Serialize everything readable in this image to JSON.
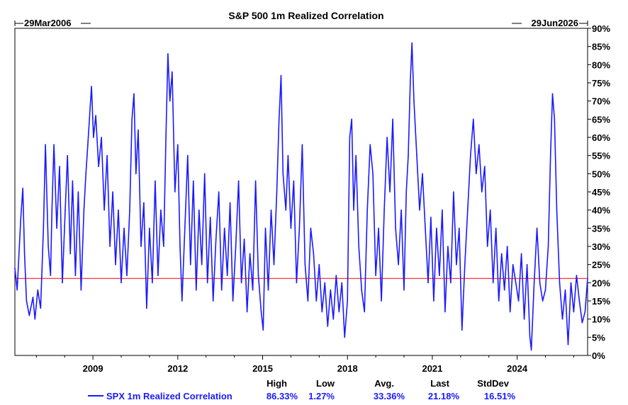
{
  "chart_data": {
    "type": "line",
    "title": "S&P 500 1m Realized Correlation",
    "date_start": "29Mar2006",
    "date_end": "29Jun2026",
    "x_range": [
      2006.24,
      2026.49
    ],
    "ylim": [
      0,
      90
    ],
    "y_ticks": [
      0,
      5,
      10,
      15,
      20,
      25,
      30,
      35,
      40,
      45,
      50,
      55,
      60,
      65,
      70,
      75,
      80,
      85,
      90
    ],
    "y_tick_labels": [
      "0%",
      "5%",
      "10%",
      "15%",
      "20%",
      "25%",
      "30%",
      "35%",
      "40%",
      "45%",
      "50%",
      "55%",
      "60%",
      "65%",
      "70%",
      "75%",
      "80%",
      "85%",
      "90%"
    ],
    "x_ticks": [
      2009,
      2012,
      2015,
      2018,
      2021,
      2024
    ],
    "x_tick_labels": [
      "2009",
      "2012",
      "2015",
      "2018",
      "2021",
      "2024"
    ],
    "reference_line": {
      "value": 21.18,
      "color": "#ff0000"
    },
    "line_color": "#1a1aff",
    "series": [
      {
        "name": "SPX 1m Realized Correlation",
        "points": [
          [
            2006.24,
            24
          ],
          [
            2006.32,
            18
          ],
          [
            2006.45,
            38
          ],
          [
            2006.52,
            46
          ],
          [
            2006.58,
            28
          ],
          [
            2006.65,
            15
          ],
          [
            2006.75,
            11
          ],
          [
            2006.88,
            16
          ],
          [
            2006.95,
            10
          ],
          [
            2007.05,
            18
          ],
          [
            2007.15,
            13
          ],
          [
            2007.25,
            35
          ],
          [
            2007.32,
            58
          ],
          [
            2007.42,
            30
          ],
          [
            2007.5,
            22
          ],
          [
            2007.55,
            40
          ],
          [
            2007.62,
            58
          ],
          [
            2007.72,
            35
          ],
          [
            2007.82,
            52
          ],
          [
            2007.92,
            20
          ],
          [
            2008.02,
            40
          ],
          [
            2008.1,
            55
          ],
          [
            2008.2,
            28
          ],
          [
            2008.28,
            48
          ],
          [
            2008.38,
            22
          ],
          [
            2008.48,
            45
          ],
          [
            2008.58,
            18
          ],
          [
            2008.68,
            40
          ],
          [
            2008.75,
            50
          ],
          [
            2008.82,
            58
          ],
          [
            2008.9,
            68
          ],
          [
            2008.95,
            74
          ],
          [
            2009.02,
            60
          ],
          [
            2009.1,
            66
          ],
          [
            2009.2,
            52
          ],
          [
            2009.3,
            60
          ],
          [
            2009.4,
            40
          ],
          [
            2009.5,
            55
          ],
          [
            2009.6,
            30
          ],
          [
            2009.7,
            45
          ],
          [
            2009.8,
            25
          ],
          [
            2009.9,
            40
          ],
          [
            2010.0,
            20
          ],
          [
            2010.1,
            35
          ],
          [
            2010.2,
            22
          ],
          [
            2010.3,
            40
          ],
          [
            2010.38,
            65
          ],
          [
            2010.45,
            72
          ],
          [
            2010.52,
            50
          ],
          [
            2010.6,
            62
          ],
          [
            2010.7,
            30
          ],
          [
            2010.8,
            42
          ],
          [
            2010.9,
            13
          ],
          [
            2011.0,
            35
          ],
          [
            2011.1,
            20
          ],
          [
            2011.2,
            48
          ],
          [
            2011.3,
            22
          ],
          [
            2011.4,
            40
          ],
          [
            2011.5,
            30
          ],
          [
            2011.58,
            60
          ],
          [
            2011.65,
            83
          ],
          [
            2011.72,
            70
          ],
          [
            2011.8,
            78
          ],
          [
            2011.9,
            45
          ],
          [
            2012.0,
            58
          ],
          [
            2012.08,
            30
          ],
          [
            2012.15,
            15
          ],
          [
            2012.25,
            35
          ],
          [
            2012.35,
            55
          ],
          [
            2012.45,
            25
          ],
          [
            2012.55,
            48
          ],
          [
            2012.65,
            18
          ],
          [
            2012.75,
            40
          ],
          [
            2012.85,
            25
          ],
          [
            2012.95,
            50
          ],
          [
            2013.05,
            20
          ],
          [
            2013.15,
            38
          ],
          [
            2013.25,
            15
          ],
          [
            2013.35,
            32
          ],
          [
            2013.45,
            45
          ],
          [
            2013.55,
            18
          ],
          [
            2013.65,
            35
          ],
          [
            2013.75,
            22
          ],
          [
            2013.85,
            42
          ],
          [
            2013.95,
            15
          ],
          [
            2014.05,
            30
          ],
          [
            2014.15,
            48
          ],
          [
            2014.25,
            20
          ],
          [
            2014.35,
            32
          ],
          [
            2014.45,
            12
          ],
          [
            2014.55,
            28
          ],
          [
            2014.65,
            18
          ],
          [
            2014.75,
            48
          ],
          [
            2014.85,
            22
          ],
          [
            2014.95,
            12
          ],
          [
            2015.02,
            7
          ],
          [
            2015.1,
            35
          ],
          [
            2015.2,
            18
          ],
          [
            2015.3,
            40
          ],
          [
            2015.4,
            25
          ],
          [
            2015.5,
            45
          ],
          [
            2015.58,
            65
          ],
          [
            2015.65,
            77
          ],
          [
            2015.72,
            50
          ],
          [
            2015.82,
            40
          ],
          [
            2015.9,
            55
          ],
          [
            2016.0,
            35
          ],
          [
            2016.1,
            48
          ],
          [
            2016.2,
            20
          ],
          [
            2016.3,
            35
          ],
          [
            2016.4,
            58
          ],
          [
            2016.5,
            25
          ],
          [
            2016.6,
            15
          ],
          [
            2016.7,
            35
          ],
          [
            2016.8,
            28
          ],
          [
            2016.9,
            15
          ],
          [
            2017.0,
            25
          ],
          [
            2017.1,
            12
          ],
          [
            2017.2,
            20
          ],
          [
            2017.3,
            8
          ],
          [
            2017.4,
            18
          ],
          [
            2017.5,
            10
          ],
          [
            2017.6,
            22
          ],
          [
            2017.7,
            12
          ],
          [
            2017.8,
            20
          ],
          [
            2017.9,
            5
          ],
          [
            2018.0,
            15
          ],
          [
            2018.08,
            60
          ],
          [
            2018.15,
            65
          ],
          [
            2018.22,
            40
          ],
          [
            2018.3,
            55
          ],
          [
            2018.4,
            30
          ],
          [
            2018.5,
            18
          ],
          [
            2018.6,
            12
          ],
          [
            2018.7,
            40
          ],
          [
            2018.8,
            58
          ],
          [
            2018.9,
            50
          ],
          [
            2019.0,
            22
          ],
          [
            2019.1,
            35
          ],
          [
            2019.2,
            15
          ],
          [
            2019.3,
            40
          ],
          [
            2019.4,
            60
          ],
          [
            2019.5,
            45
          ],
          [
            2019.6,
            65
          ],
          [
            2019.7,
            35
          ],
          [
            2019.8,
            25
          ],
          [
            2019.9,
            40
          ],
          [
            2020.0,
            18
          ],
          [
            2020.08,
            45
          ],
          [
            2020.15,
            55
          ],
          [
            2020.22,
            75
          ],
          [
            2020.28,
            86
          ],
          [
            2020.35,
            70
          ],
          [
            2020.45,
            55
          ],
          [
            2020.55,
            40
          ],
          [
            2020.65,
            50
          ],
          [
            2020.75,
            35
          ],
          [
            2020.85,
            20
          ],
          [
            2020.95,
            38
          ],
          [
            2021.05,
            15
          ],
          [
            2021.15,
            35
          ],
          [
            2021.25,
            22
          ],
          [
            2021.35,
            40
          ],
          [
            2021.45,
            12
          ],
          [
            2021.55,
            30
          ],
          [
            2021.65,
            20
          ],
          [
            2021.75,
            45
          ],
          [
            2021.85,
            25
          ],
          [
            2021.95,
            35
          ],
          [
            2022.05,
            7
          ],
          [
            2022.15,
            25
          ],
          [
            2022.25,
            40
          ],
          [
            2022.35,
            55
          ],
          [
            2022.45,
            65
          ],
          [
            2022.55,
            50
          ],
          [
            2022.65,
            58
          ],
          [
            2022.75,
            45
          ],
          [
            2022.85,
            52
          ],
          [
            2022.95,
            30
          ],
          [
            2023.05,
            40
          ],
          [
            2023.15,
            20
          ],
          [
            2023.25,
            35
          ],
          [
            2023.35,
            15
          ],
          [
            2023.45,
            28
          ],
          [
            2023.55,
            18
          ],
          [
            2023.65,
            30
          ],
          [
            2023.75,
            12
          ],
          [
            2023.85,
            25
          ],
          [
            2023.95,
            20
          ],
          [
            2024.05,
            15
          ],
          [
            2024.15,
            28
          ],
          [
            2024.25,
            10
          ],
          [
            2024.35,
            25
          ],
          [
            2024.45,
            5
          ],
          [
            2024.5,
            1.5
          ],
          [
            2024.6,
            20
          ],
          [
            2024.7,
            35
          ],
          [
            2024.8,
            20
          ],
          [
            2024.9,
            15
          ],
          [
            2025.0,
            18
          ],
          [
            2025.1,
            30
          ],
          [
            2025.18,
            55
          ],
          [
            2025.25,
            72
          ],
          [
            2025.32,
            65
          ],
          [
            2025.4,
            40
          ],
          [
            2025.5,
            20
          ],
          [
            2025.6,
            10
          ],
          [
            2025.7,
            18
          ],
          [
            2025.8,
            3
          ],
          [
            2025.9,
            20
          ],
          [
            2026.0,
            12
          ],
          [
            2026.1,
            22
          ],
          [
            2026.2,
            15
          ],
          [
            2026.3,
            9
          ],
          [
            2026.4,
            12
          ],
          [
            2026.49,
            21.18
          ]
        ]
      }
    ],
    "legend": {
      "label": "SPX 1m Realized Correlation",
      "headers": [
        "High",
        "Low",
        "Avg.",
        "Last",
        "StdDev"
      ],
      "values": [
        "86.33%",
        "1.27%",
        "33.36%",
        "21.18%",
        "16.51%"
      ]
    }
  }
}
